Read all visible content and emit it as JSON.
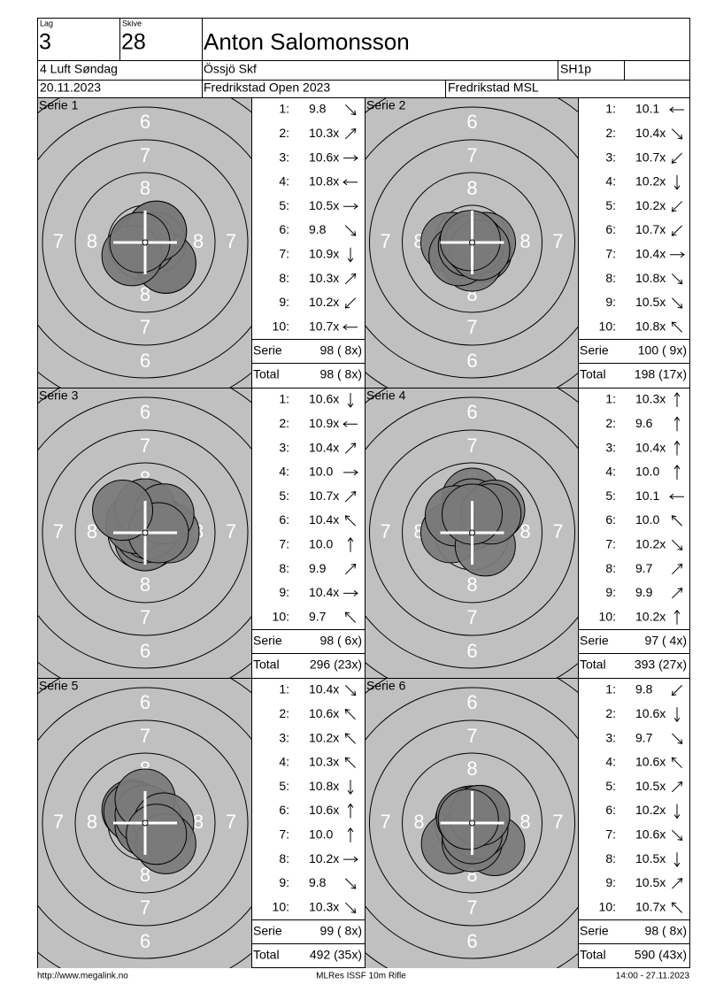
{
  "header": {
    "lag_label": "Lag",
    "lag": "3",
    "skive_label": "Skive",
    "skive": "28",
    "name": "Anton Salomonsson",
    "event": "4 Luft Søndag",
    "club": "Össjö Skf",
    "class": "SH1p",
    "date": "20.11.2023",
    "competition": "Fredrikstad Open 2023",
    "organizer": "Fredrikstad MSL"
  },
  "ring_labels": [
    "6",
    "7",
    "8"
  ],
  "series": [
    {
      "title": "Serie 1",
      "shots": [
        {
          "n": "1:",
          "score": "9.8"
        },
        {
          "n": "2:",
          "score": "10.3x"
        },
        {
          "n": "3:",
          "score": "10.6x"
        },
        {
          "n": "4:",
          "score": "10.8x"
        },
        {
          "n": "5:",
          "score": "10.5x"
        },
        {
          "n": "6:",
          "score": "9.8"
        },
        {
          "n": "7:",
          "score": "10.9x"
        },
        {
          "n": "8:",
          "score": "10.3x"
        },
        {
          "n": "9:",
          "score": "10.2x"
        },
        {
          "n": "10:",
          "score": "10.7x"
        }
      ],
      "serie_label": "Serie",
      "serie": "98 ( 8x)",
      "total_label": "Total",
      "total": "98 ( 8x)"
    },
    {
      "title": "Serie 2",
      "shots": [
        {
          "n": "1:",
          "score": "10.1"
        },
        {
          "n": "2:",
          "score": "10.4x"
        },
        {
          "n": "3:",
          "score": "10.7x"
        },
        {
          "n": "4:",
          "score": "10.2x"
        },
        {
          "n": "5:",
          "score": "10.2x"
        },
        {
          "n": "6:",
          "score": "10.7x"
        },
        {
          "n": "7:",
          "score": "10.4x"
        },
        {
          "n": "8:",
          "score": "10.8x"
        },
        {
          "n": "9:",
          "score": "10.5x"
        },
        {
          "n": "10:",
          "score": "10.8x"
        }
      ],
      "serie_label": "Serie",
      "serie": "100 ( 9x)",
      "total_label": "Total",
      "total": "198 (17x)"
    },
    {
      "title": "Serie 3",
      "shots": [
        {
          "n": "1:",
          "score": "10.6x"
        },
        {
          "n": "2:",
          "score": "10.9x"
        },
        {
          "n": "3:",
          "score": "10.4x"
        },
        {
          "n": "4:",
          "score": "10.0"
        },
        {
          "n": "5:",
          "score": "10.7x"
        },
        {
          "n": "6:",
          "score": "10.4x"
        },
        {
          "n": "7:",
          "score": "10.0"
        },
        {
          "n": "8:",
          "score": "9.9"
        },
        {
          "n": "9:",
          "score": "10.4x"
        },
        {
          "n": "10:",
          "score": "9.7"
        }
      ],
      "serie_label": "Serie",
      "serie": "98 ( 6x)",
      "total_label": "Total",
      "total": "296 (23x)"
    },
    {
      "title": "Serie 4",
      "shots": [
        {
          "n": "1:",
          "score": "10.3x"
        },
        {
          "n": "2:",
          "score": "9.6"
        },
        {
          "n": "3:",
          "score": "10.4x"
        },
        {
          "n": "4:",
          "score": "10.0"
        },
        {
          "n": "5:",
          "score": "10.1"
        },
        {
          "n": "6:",
          "score": "10.0"
        },
        {
          "n": "7:",
          "score": "10.2x"
        },
        {
          "n": "8:",
          "score": "9.7"
        },
        {
          "n": "9:",
          "score": "9.9"
        },
        {
          "n": "10:",
          "score": "10.2x"
        }
      ],
      "serie_label": "Serie",
      "serie": "97 ( 4x)",
      "total_label": "Total",
      "total": "393 (27x)"
    },
    {
      "title": "Serie 5",
      "shots": [
        {
          "n": "1:",
          "score": "10.4x"
        },
        {
          "n": "2:",
          "score": "10.6x"
        },
        {
          "n": "3:",
          "score": "10.2x"
        },
        {
          "n": "4:",
          "score": "10.3x"
        },
        {
          "n": "5:",
          "score": "10.8x"
        },
        {
          "n": "6:",
          "score": "10.6x"
        },
        {
          "n": "7:",
          "score": "10.0"
        },
        {
          "n": "8:",
          "score": "10.2x"
        },
        {
          "n": "9:",
          "score": "9.8"
        },
        {
          "n": "10:",
          "score": "10.3x"
        }
      ],
      "serie_label": "Serie",
      "serie": "99 ( 8x)",
      "total_label": "Total",
      "total": "492 (35x)"
    },
    {
      "title": "Serie 6",
      "shots": [
        {
          "n": "1:",
          "score": "9.8"
        },
        {
          "n": "2:",
          "score": "10.6x"
        },
        {
          "n": "3:",
          "score": "9.7"
        },
        {
          "n": "4:",
          "score": "10.6x"
        },
        {
          "n": "5:",
          "score": "10.5x"
        },
        {
          "n": "6:",
          "score": "10.2x"
        },
        {
          "n": "7:",
          "score": "10.6x"
        },
        {
          "n": "8:",
          "score": "10.5x"
        },
        {
          "n": "9:",
          "score": "10.5x"
        },
        {
          "n": "10:",
          "score": "10.7x"
        }
      ],
      "serie_label": "Serie",
      "serie": "98 ( 8x)",
      "total_label": "Total",
      "total": "590 (43x)"
    }
  ],
  "footer": {
    "left": "http://www.megalink.no",
    "center": "MLRes ISSF 10m Rifle",
    "right": "14:00 - 27.11.2023"
  }
}
